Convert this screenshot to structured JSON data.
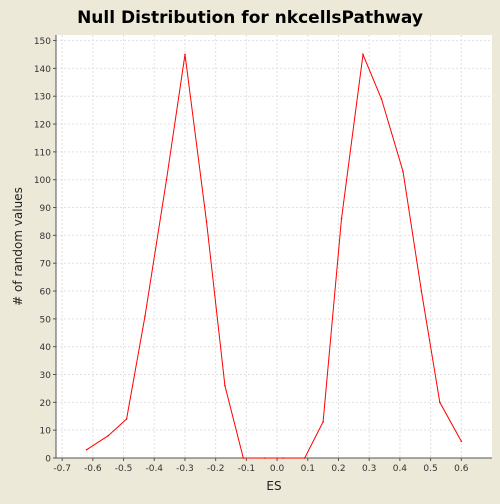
{
  "chart_data": {
    "type": "line",
    "title": "Null Distribution for nkcellsPathway",
    "xlabel": "ES",
    "ylabel": "# of random values",
    "xlim": [
      -0.72,
      0.7
    ],
    "ylim": [
      0,
      152
    ],
    "x_ticks": [
      -0.7,
      -0.6,
      -0.5,
      -0.4,
      -0.3,
      -0.2,
      -0.1,
      0.0,
      0.1,
      0.2,
      0.3,
      0.4,
      0.5,
      0.6
    ],
    "x_tick_labels": [
      "-0.7",
      "-0.6",
      "-0.5",
      "-0.4",
      "-0.3",
      "-0.2",
      "-0.1",
      "0.0",
      "0.1",
      "0.2",
      "0.3",
      "0.4",
      "0.5",
      "0.6"
    ],
    "y_ticks": [
      0,
      10,
      20,
      30,
      40,
      50,
      60,
      70,
      80,
      90,
      100,
      110,
      120,
      130,
      140,
      150
    ],
    "y_tick_labels": [
      "0",
      "10",
      "20",
      "30",
      "40",
      "50",
      "60",
      "70",
      "80",
      "90",
      "100",
      "110",
      "120",
      "130",
      "140",
      "150"
    ],
    "grid": true,
    "series": [
      {
        "color": "#ff0000",
        "x": [
          -0.62,
          -0.55,
          -0.49,
          -0.43,
          -0.36,
          -0.3,
          -0.23,
          -0.17,
          -0.11,
          -0.04,
          0.02,
          0.09,
          0.15,
          0.21,
          0.28,
          0.34,
          0.41,
          0.47,
          0.53,
          0.6
        ],
        "y": [
          3,
          8,
          14,
          51,
          100,
          145,
          85,
          26,
          0,
          0,
          0,
          0,
          13,
          86,
          145,
          129,
          103,
          60,
          20,
          6
        ]
      }
    ]
  },
  "colors": {
    "background": "#ece9d8",
    "plot_background": "#ffffff",
    "grid": "#e0e0e0",
    "axis": "#555555",
    "line": "#ff0000"
  }
}
